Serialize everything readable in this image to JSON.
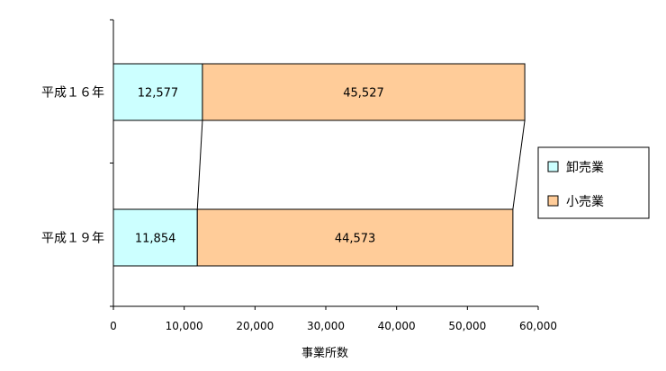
{
  "chart_data": {
    "type": "bar",
    "orientation": "horizontal",
    "stacked": true,
    "categories": [
      "平成16年",
      "平成19年"
    ],
    "category_display": [
      "平成１６年",
      "平成１９年"
    ],
    "series": [
      {
        "name": "卸売業",
        "values": [
          12577,
          11854
        ],
        "value_labels": [
          "12,577",
          "11,854"
        ],
        "color": "#ccffff"
      },
      {
        "name": "小売業",
        "values": [
          45527,
          44573
        ],
        "value_labels": [
          "45,527",
          "44,573"
        ],
        "color": "#ffcc99"
      }
    ],
    "xlabel": "事業所数",
    "xlim": [
      0,
      60000
    ],
    "xticks": [
      0,
      10000,
      20000,
      30000,
      40000,
      50000,
      60000
    ],
    "xtick_labels": [
      "0",
      "10,000",
      "20,000",
      "30,000",
      "40,000",
      "50,000",
      "60,000"
    ],
    "series_lines": true,
    "grid": false,
    "legend": "right"
  }
}
